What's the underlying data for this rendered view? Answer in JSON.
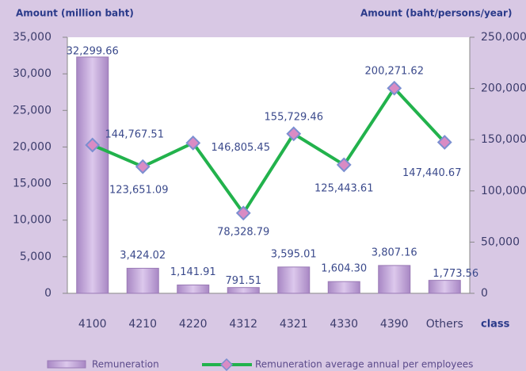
{
  "chart_data": {
    "type": "bar",
    "y_label": "Amount (million baht)",
    "y2_label": "Amount (baht/persons/year)",
    "x_label": "class",
    "categories": [
      "4100",
      "4210",
      "4220",
      "4312",
      "4321",
      "4330",
      "4390",
      "Others"
    ],
    "series": [
      {
        "name": "Remuneration",
        "type": "bar",
        "color": "#bda0d6",
        "values": [
          32299.66,
          3424.02,
          1141.91,
          791.51,
          3595.01,
          1604.3,
          3807.16,
          1773.56
        ],
        "value_labels": [
          "32,299.66",
          "3,424.02",
          "1,141.91",
          "791.51",
          "3,595.01",
          "1,604.30",
          "3,807.16",
          "1,773.56"
        ]
      },
      {
        "name": "Remuneration average annual per employees",
        "type": "line",
        "axis": "y2",
        "color": "#22b24c",
        "marker_color": "#d98bc4",
        "values": [
          144767.51,
          123651.09,
          146805.45,
          78328.79,
          155729.46,
          125443.61,
          200271.62,
          147440.67
        ],
        "value_labels": [
          "144,767.51",
          "123,651.09",
          "146,805.45",
          "78,328.79",
          "155,729.46",
          "125,443.61",
          "200,271.62",
          "147,440.67"
        ]
      }
    ],
    "ylim": [
      0,
      35000
    ],
    "yticks": [
      0,
      {
        "value": 5000,
        "label": "5,000"
      },
      {
        "value": 10000,
        "label": "10,000"
      },
      {
        "value": 15000,
        "label": "15,000"
      },
      {
        "value": 20000,
        "label": "20,000"
      },
      {
        "value": 25000,
        "label": "25,000"
      },
      {
        "value": 30000,
        "label": "30,000"
      },
      {
        "value": 35000,
        "label": "35,000"
      }
    ],
    "y2lim": [
      0,
      250000
    ],
    "y2ticks": [
      0,
      {
        "value": 50000,
        "label": "50,000"
      },
      {
        "value": 100000,
        "label": "100,000"
      },
      {
        "value": 150000,
        "label": "150,000"
      },
      {
        "value": 200000,
        "label": "200,000"
      },
      {
        "value": 250000,
        "label": "250,000"
      }
    ],
    "grid": false,
    "legend": "bottom"
  }
}
